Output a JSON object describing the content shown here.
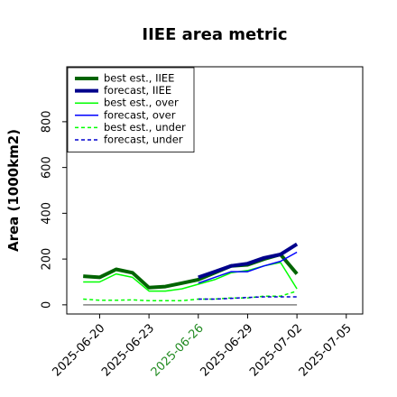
{
  "chart_data": {
    "type": "line",
    "title": "IIEE area metric",
    "xlabel": "",
    "ylabel": "Area (1000km2)",
    "x_ticks": [
      "2025-06-20",
      "2025-06-23",
      "2025-06-26",
      "2025-06-29",
      "2025-07-02",
      "2025-07-05"
    ],
    "x_tick_colors": [
      "#000000",
      "#000000",
      "#228b22",
      "#000000",
      "#000000",
      "#000000"
    ],
    "xlim": [
      "2025-06-18",
      "2025-07-06"
    ],
    "y_ticks": [
      0,
      200,
      400,
      600,
      800
    ],
    "ylim": [
      -40,
      1040
    ],
    "grid": false,
    "legend_position": "top-left",
    "series": [
      {
        "name": "best est., IIEE",
        "color": "#006400",
        "line_style": "solid",
        "line_weight": "heavy",
        "x": [
          "2025-06-19",
          "2025-06-20",
          "2025-06-21",
          "2025-06-22",
          "2025-06-23",
          "2025-06-24",
          "2025-06-25",
          "2025-06-26",
          "2025-06-27",
          "2025-06-28",
          "2025-06-29",
          "2025-06-30",
          "2025-07-01",
          "2025-07-02"
        ],
        "values": [
          125,
          120,
          155,
          140,
          75,
          80,
          95,
          110,
          140,
          170,
          175,
          200,
          220,
          135
        ]
      },
      {
        "name": "forecast, IIEE",
        "color": "#00008b",
        "line_style": "solid",
        "line_weight": "heavy",
        "x": [
          "2025-06-26",
          "2025-06-27",
          "2025-06-28",
          "2025-06-29",
          "2025-06-30",
          "2025-07-01",
          "2025-07-02"
        ],
        "values": [
          120,
          145,
          170,
          180,
          205,
          220,
          265
        ]
      },
      {
        "name": "best est., over",
        "color": "#00ff00",
        "line_style": "solid",
        "line_weight": "normal",
        "x": [
          "2025-06-19",
          "2025-06-20",
          "2025-06-21",
          "2025-06-22",
          "2025-06-23",
          "2025-06-24",
          "2025-06-25",
          "2025-06-26",
          "2025-06-27",
          "2025-06-28",
          "2025-06-29",
          "2025-06-30",
          "2025-07-01",
          "2025-07-02"
        ],
        "values": [
          100,
          100,
          135,
          120,
          60,
          60,
          70,
          90,
          110,
          140,
          150,
          170,
          185,
          70
        ]
      },
      {
        "name": "forecast, over",
        "color": "#0000ff",
        "line_style": "solid",
        "line_weight": "normal",
        "x": [
          "2025-06-26",
          "2025-06-27",
          "2025-06-28",
          "2025-06-29",
          "2025-06-30",
          "2025-07-01",
          "2025-07-02"
        ],
        "values": [
          95,
          120,
          145,
          145,
          170,
          190,
          230
        ]
      },
      {
        "name": "best est., under",
        "color": "#00ff00",
        "line_style": "dashed",
        "line_weight": "normal",
        "x": [
          "2025-06-19",
          "2025-06-20",
          "2025-06-21",
          "2025-06-22",
          "2025-06-23",
          "2025-06-24",
          "2025-06-25",
          "2025-06-26",
          "2025-06-27",
          "2025-06-28",
          "2025-06-29",
          "2025-06-30",
          "2025-07-01",
          "2025-07-02"
        ],
        "values": [
          25,
          20,
          20,
          22,
          18,
          18,
          18,
          25,
          25,
          30,
          30,
          38,
          38,
          60
        ]
      },
      {
        "name": "forecast, under",
        "color": "#0000cd",
        "line_style": "dashed",
        "line_weight": "normal",
        "x": [
          "2025-06-26",
          "2025-06-27",
          "2025-06-28",
          "2025-06-29",
          "2025-06-30",
          "2025-07-01",
          "2025-07-02"
        ],
        "values": [
          25,
          25,
          28,
          32,
          35,
          35,
          35
        ]
      },
      {
        "color": "#808080",
        "line_style": "solid",
        "line_weight": "normal",
        "x": [
          "2025-06-19",
          "2025-07-02"
        ],
        "values": [
          0,
          0
        ]
      }
    ]
  }
}
